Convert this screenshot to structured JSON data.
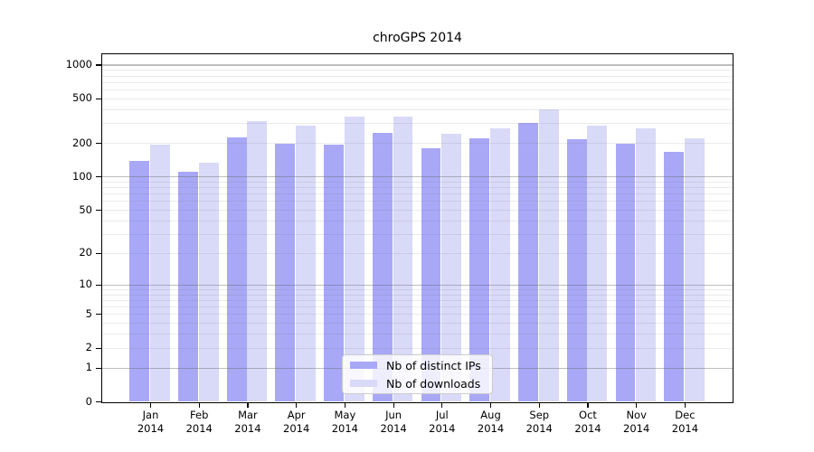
{
  "figure_title": "chroGPS 2014",
  "chart_data": {
    "type": "bar",
    "title": "chroGPS 2014",
    "categories": [
      {
        "month": "Jan",
        "year": "2014"
      },
      {
        "month": "Feb",
        "year": "2014"
      },
      {
        "month": "Mar",
        "year": "2014"
      },
      {
        "month": "Apr",
        "year": "2014"
      },
      {
        "month": "May",
        "year": "2014"
      },
      {
        "month": "Jun",
        "year": "2014"
      },
      {
        "month": "Jul",
        "year": "2014"
      },
      {
        "month": "Aug",
        "year": "2014"
      },
      {
        "month": "Sep",
        "year": "2014"
      },
      {
        "month": "Oct",
        "year": "2014"
      },
      {
        "month": "Nov",
        "year": "2014"
      },
      {
        "month": "Dec",
        "year": "2014"
      }
    ],
    "series": [
      {
        "name": "Nb of distinct IPs",
        "color": "#a8a8f7",
        "values": [
          140,
          112,
          224,
          200,
          194,
          250,
          180,
          221,
          302,
          217,
          198,
          167
        ]
      },
      {
        "name": "Nb of downloads",
        "color": "#d9d9f8",
        "values": [
          195,
          133,
          318,
          290,
          350,
          345,
          245,
          271,
          405,
          287,
          271,
          221
        ]
      }
    ],
    "y_axis": {
      "scale": "log10(1+value)",
      "ylim": [
        0,
        1250
      ],
      "tick_values": [
        0,
        1,
        2,
        5,
        10,
        20,
        50,
        100,
        200,
        500,
        1000
      ],
      "tick_labels": [
        "0",
        "1",
        "2",
        "5",
        "10",
        "20",
        "50",
        "100",
        "200",
        "500",
        "1000"
      ],
      "major_gridline_values": [
        1,
        10,
        100,
        1000
      ],
      "minor_gridline_values": [
        2,
        3,
        4,
        5,
        6,
        7,
        8,
        9,
        20,
        30,
        40,
        50,
        60,
        70,
        80,
        90,
        200,
        300,
        400,
        500,
        600,
        700,
        800,
        900
      ]
    },
    "x_axis": {
      "label": ""
    },
    "legend": {
      "position": "inside-bottom-center",
      "items": [
        "Nb of distinct IPs",
        "Nb of downloads"
      ]
    },
    "grid": true
  },
  "colors": {
    "background": "#ffffff",
    "bar_distinct_ips": "#a8a8f7",
    "bar_downloads": "#d9d9f8",
    "axis": "#000000",
    "text": "#000000",
    "grid_major": "rgba(100,100,100,0.42)",
    "grid_minor": "rgba(100,100,100,0.13)",
    "legend_border": "#cccccc"
  }
}
